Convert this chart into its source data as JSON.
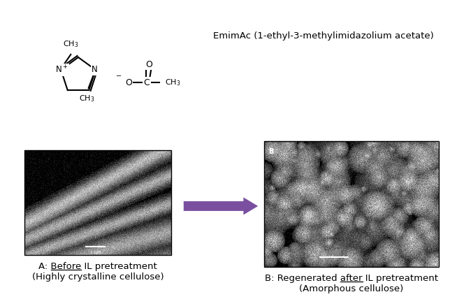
{
  "bg_color": "#ffffff",
  "arrow_color": "#7B4FA0",
  "emimac_label": "EmimAc (1-ethyl-3-methylimidazolium acetate)",
  "label_a_prefix": "A: ",
  "label_a_underlined": "Before",
  "label_a_suffix": " IL pretreatment",
  "label_a_line2": "(Highly crystalline cellulose)",
  "label_b_prefix": "B: Regenerated ",
  "label_b_underlined": "after",
  "label_b_suffix": " IL pretreatment",
  "label_b_line2": "(Amorphous cellulose)",
  "fig_width": 6.54,
  "fig_height": 4.38,
  "dpi": 100
}
